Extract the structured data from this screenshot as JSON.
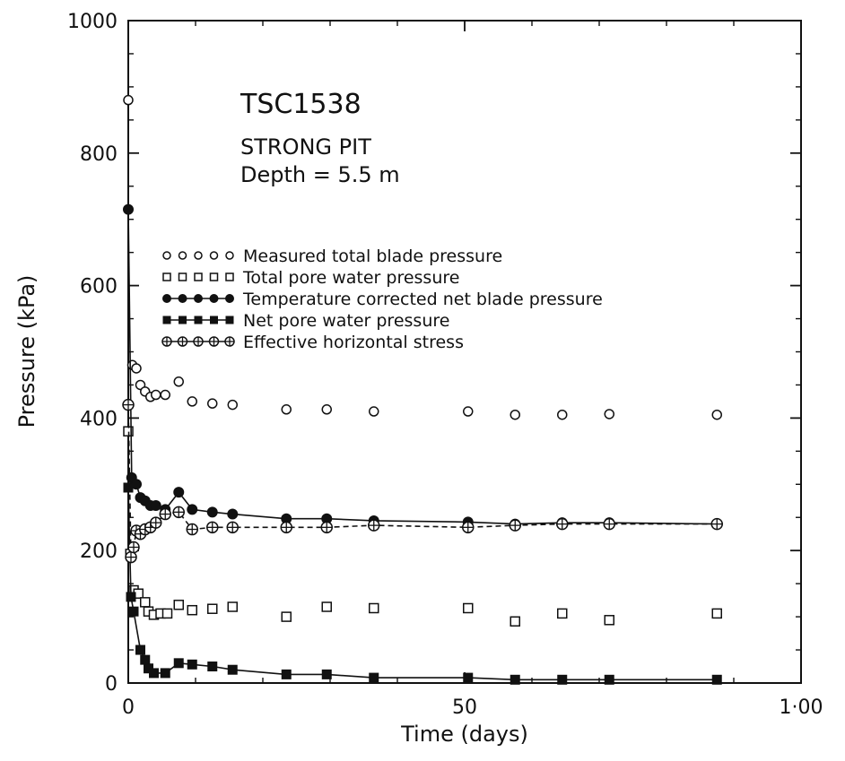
{
  "chart_data": {
    "type": "scatter",
    "title": "TSC1538",
    "subtitle": [
      "STRONG PIT",
      "Depth = 5.5 m"
    ],
    "xlabel": "Time (days)",
    "ylabel": "Pressure (kPa)",
    "xlim": [
      0,
      100
    ],
    "ylim": [
      0,
      1000
    ],
    "xticks": [
      0,
      50,
      100
    ],
    "xtick_labels": [
      "0",
      "50",
      "1·00"
    ],
    "yticks": [
      0,
      200,
      400,
      600,
      800,
      1000
    ],
    "ytick_labels": [
      "0",
      "200",
      "400",
      "600",
      "800",
      "1000"
    ],
    "grid": false,
    "legend_position": "center-right",
    "series": [
      {
        "name": "Measured total blade pressure",
        "marker": "open-circle",
        "line": "none",
        "points": [
          [
            0,
            880
          ],
          [
            0.6,
            480
          ],
          [
            1.2,
            475
          ],
          [
            1.8,
            450
          ],
          [
            2.5,
            440
          ],
          [
            3.3,
            432
          ],
          [
            4.1,
            435
          ],
          [
            5.5,
            435
          ],
          [
            7.5,
            455
          ],
          [
            9.5,
            425
          ],
          [
            12.5,
            422
          ],
          [
            15.5,
            420
          ],
          [
            23.5,
            413
          ],
          [
            29.5,
            413
          ],
          [
            36.5,
            410
          ],
          [
            50.5,
            410
          ],
          [
            57.5,
            405
          ],
          [
            64.5,
            405
          ],
          [
            71.5,
            406
          ],
          [
            87.5,
            405
          ]
        ]
      },
      {
        "name": "Total pore water pressure",
        "marker": "open-square",
        "line": "none",
        "points": [
          [
            0,
            380
          ],
          [
            0.3,
            195
          ],
          [
            0.8,
            140
          ],
          [
            1.5,
            135
          ],
          [
            2.5,
            122
          ],
          [
            3.0,
            108
          ],
          [
            3.8,
            103
          ],
          [
            4.8,
            105
          ],
          [
            5.8,
            105
          ],
          [
            7.5,
            118
          ],
          [
            9.5,
            110
          ],
          [
            12.5,
            112
          ],
          [
            15.5,
            115
          ],
          [
            23.5,
            100
          ],
          [
            29.5,
            115
          ],
          [
            36.5,
            113
          ],
          [
            50.5,
            113
          ],
          [
            57.5,
            93
          ],
          [
            64.5,
            105
          ],
          [
            71.5,
            95
          ],
          [
            87.5,
            105
          ]
        ]
      },
      {
        "name": "Temperature corrected net blade pressure",
        "marker": "filled-circle",
        "line": "solid",
        "points": [
          [
            0,
            715
          ],
          [
            0.5,
            310
          ],
          [
            1.2,
            300
          ],
          [
            1.8,
            280
          ],
          [
            2.5,
            275
          ],
          [
            3.3,
            268
          ],
          [
            4.1,
            268
          ],
          [
            5.5,
            262
          ],
          [
            7.5,
            288
          ],
          [
            9.5,
            262
          ],
          [
            12.5,
            258
          ],
          [
            15.5,
            255
          ],
          [
            23.5,
            248
          ],
          [
            29.5,
            248
          ],
          [
            36.5,
            245
          ],
          [
            50.5,
            243
          ],
          [
            57.5,
            240
          ],
          [
            64.5,
            242
          ],
          [
            71.5,
            242
          ],
          [
            87.5,
            240
          ]
        ]
      },
      {
        "name": "Net pore water pressure",
        "marker": "filled-square",
        "line": "solid",
        "points": [
          [
            0,
            295
          ],
          [
            0.4,
            130
          ],
          [
            0.8,
            108
          ],
          [
            1.8,
            50
          ],
          [
            2.5,
            35
          ],
          [
            3.0,
            22
          ],
          [
            3.8,
            15
          ],
          [
            5.5,
            15
          ],
          [
            7.5,
            30
          ],
          [
            9.5,
            28
          ],
          [
            12.5,
            25
          ],
          [
            15.5,
            20
          ],
          [
            23.5,
            13
          ],
          [
            29.5,
            13
          ],
          [
            36.5,
            8
          ],
          [
            50.5,
            8
          ],
          [
            57.5,
            5
          ],
          [
            64.5,
            5
          ],
          [
            71.5,
            5
          ],
          [
            87.5,
            5
          ]
        ]
      },
      {
        "name": "Effective horizontal stress",
        "marker": "crossed-circle",
        "line": "dashed",
        "points": [
          [
            0,
            420
          ],
          [
            0.4,
            190
          ],
          [
            0.8,
            205
          ],
          [
            1.2,
            230
          ],
          [
            1.8,
            225
          ],
          [
            2.5,
            232
          ],
          [
            3.3,
            235
          ],
          [
            4.1,
            242
          ],
          [
            5.5,
            255
          ],
          [
            7.5,
            258
          ],
          [
            9.5,
            232
          ],
          [
            12.5,
            235
          ],
          [
            15.5,
            235
          ],
          [
            23.5,
            235
          ],
          [
            29.5,
            235
          ],
          [
            36.5,
            238
          ],
          [
            50.5,
            235
          ],
          [
            57.5,
            238
          ],
          [
            64.5,
            240
          ],
          [
            71.5,
            240
          ],
          [
            87.5,
            240
          ]
        ]
      }
    ]
  }
}
